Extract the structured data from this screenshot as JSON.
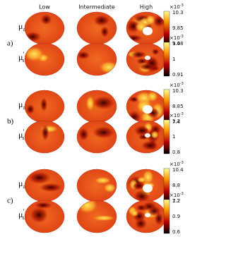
{
  "header": {
    "columns": [
      "Low",
      "Intermediate",
      "High"
    ]
  },
  "groups": [
    {
      "label": "a)",
      "rows": [
        {
          "symbol": {
            "base": "μ",
            "sub": "a"
          },
          "exponent": {
            "base": "×10",
            "sup": "-3"
          },
          "ticks": [
            "10.3",
            "9.85",
            "9.4"
          ]
        },
        {
          "symbol": {
            "base": "μ",
            "sup": "′",
            "sub": "s"
          },
          "exponent": {
            "base": "×10",
            "sup": "-3"
          },
          "ticks": [
            "1.08",
            "1",
            "0.91"
          ]
        }
      ]
    },
    {
      "label": "b)",
      "rows": [
        {
          "symbol": {
            "base": "μ",
            "sub": "a"
          },
          "exponent": {
            "base": "×10",
            "sup": "-3"
          },
          "ticks": [
            "10.3",
            "8.85",
            "7.4"
          ]
        },
        {
          "symbol": {
            "base": "μ",
            "sup": "′",
            "sub": "s"
          },
          "exponent": {
            "base": "×10",
            "sup": "-3"
          },
          "ticks": [
            "1.2",
            "1",
            "0.8"
          ]
        }
      ]
    },
    {
      "label": "c)",
      "rows": [
        {
          "symbol": {
            "base": "μ",
            "sub": "a"
          },
          "exponent": {
            "base": "×10",
            "sup": "-3"
          },
          "ticks": [
            "10.4",
            "8.8",
            "7.2"
          ]
        },
        {
          "symbol": {
            "base": "μ",
            "sup": "′",
            "sub": "s"
          },
          "exponent": {
            "base": "×10",
            "sup": "-3"
          },
          "ticks": [
            "1.2",
            "0.9",
            "0.6"
          ]
        }
      ]
    }
  ]
}
